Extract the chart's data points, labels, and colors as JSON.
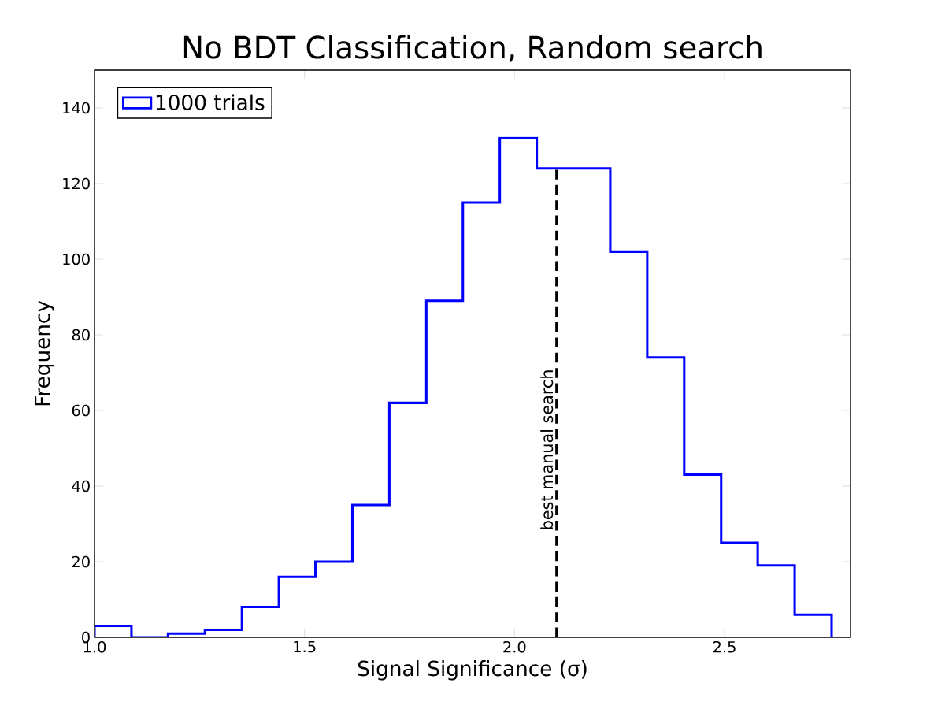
{
  "chart_data": {
    "type": "histogram",
    "title": "No BDT Classification, Random search",
    "xlabel": "Signal Significance (σ)",
    "ylabel": "Frequency",
    "bins": [
      1.0,
      1.088,
      1.175,
      1.263,
      1.351,
      1.439,
      1.526,
      1.614,
      1.702,
      1.79,
      1.877,
      1.965,
      2.053,
      2.141,
      2.228,
      2.316,
      2.404,
      2.492,
      2.579,
      2.667,
      2.755
    ],
    "series": [
      {
        "name": "1000 trials",
        "color": "#0000ff",
        "values": [
          3,
          0,
          1,
          2,
          8,
          16,
          20,
          35,
          62,
          89,
          115,
          132,
          124,
          124,
          102,
          74,
          43,
          25,
          19,
          6
        ]
      }
    ],
    "xlim": [
      1.0,
      2.8
    ],
    "xticks": [
      {
        "value": 1,
        "label": "1.0"
      },
      1.5,
      {
        "value": 2,
        "label": "2.0"
      },
      2.5
    ],
    "ylim": [
      0,
      150
    ],
    "yticks": [
      0,
      20,
      40,
      60,
      80,
      100,
      120,
      140
    ],
    "ref_lines": [
      {
        "axis": "x",
        "value": 2.1,
        "label": "best manual search",
        "color": "#000000",
        "line_style": "dashed"
      }
    ],
    "legend": "top left",
    "grid": false
  }
}
